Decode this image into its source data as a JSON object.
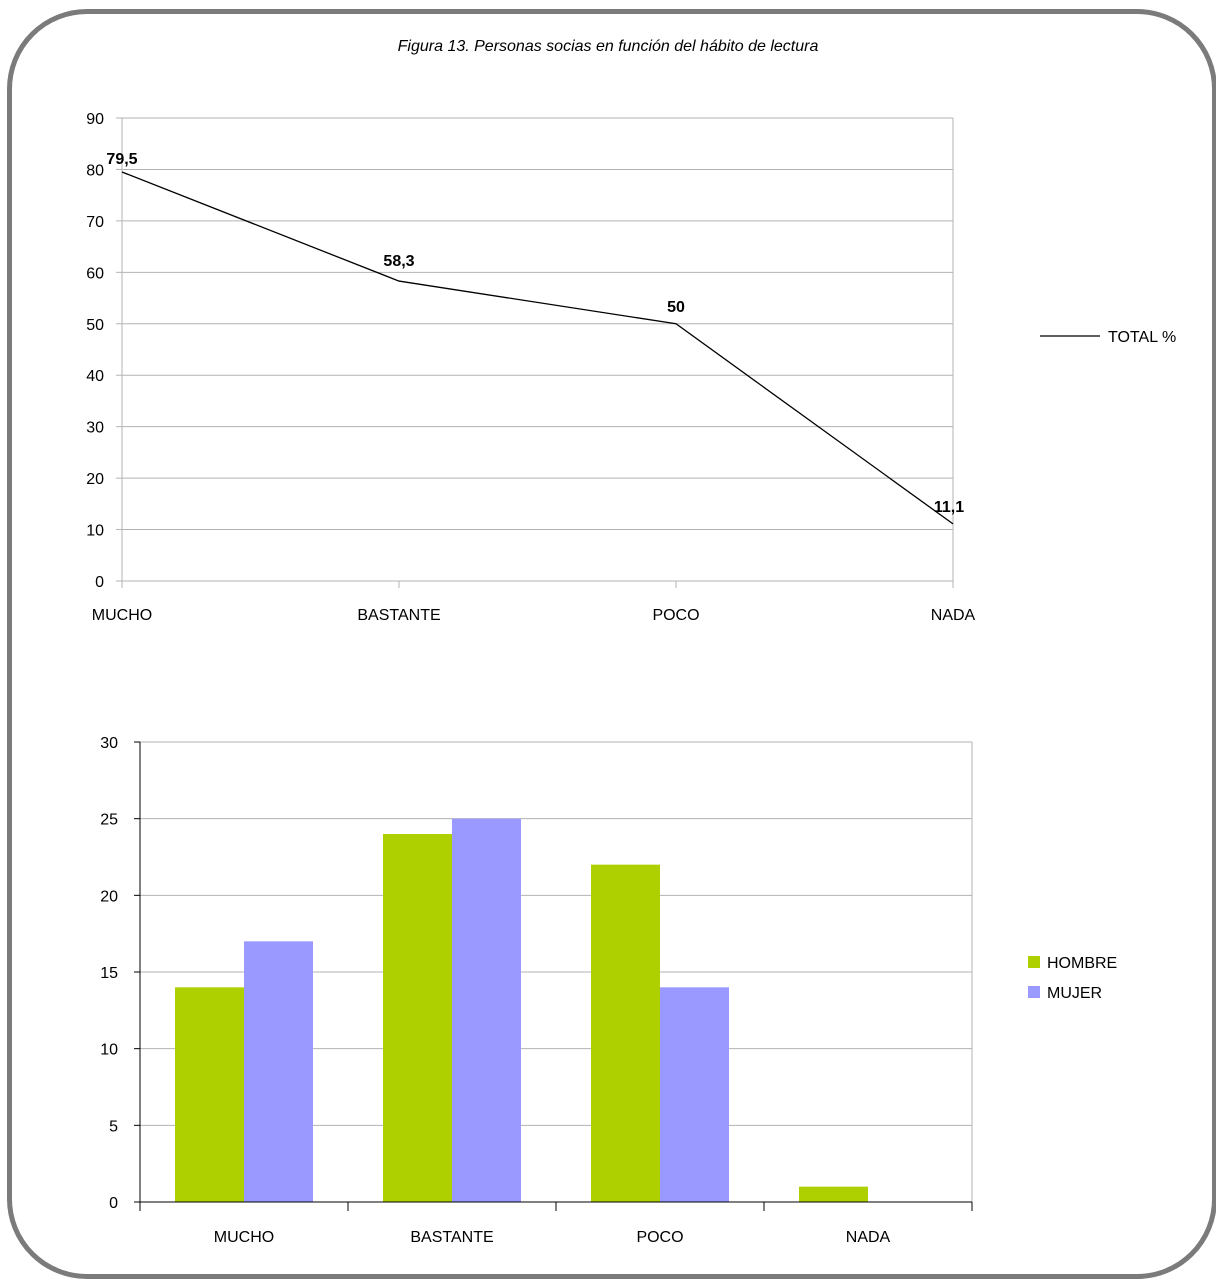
{
  "figure": {
    "title": "Figura 13. Personas socias en función del hábito de lectura"
  },
  "chart_data": [
    {
      "type": "line",
      "categories": [
        "MUCHO",
        "BASTANTE",
        "POCO",
        "NADA"
      ],
      "series": [
        {
          "name": "TOTAL %",
          "values": [
            79.5,
            58.3,
            50,
            11.1
          ],
          "color": "#000000"
        }
      ],
      "data_labels": [
        "79,5",
        "58,3",
        "50",
        "11,1"
      ],
      "yticks": [
        0,
        10,
        20,
        30,
        40,
        50,
        60,
        70,
        80,
        90
      ],
      "ylim": [
        0,
        90
      ],
      "grid": true,
      "legend": "right"
    },
    {
      "type": "bar",
      "categories": [
        "MUCHO",
        "BASTANTE",
        "POCO",
        "NADA"
      ],
      "series": [
        {
          "name": "HOMBRE",
          "values": [
            14,
            24,
            22,
            1
          ],
          "color": "#aecf00"
        },
        {
          "name": "MUJER",
          "values": [
            17,
            25,
            14,
            0
          ],
          "color": "#9999ff"
        }
      ],
      "yticks": [
        0,
        5,
        10,
        15,
        20,
        25,
        30
      ],
      "ylim": [
        0,
        30
      ],
      "grid": true,
      "legend": "right"
    }
  ]
}
